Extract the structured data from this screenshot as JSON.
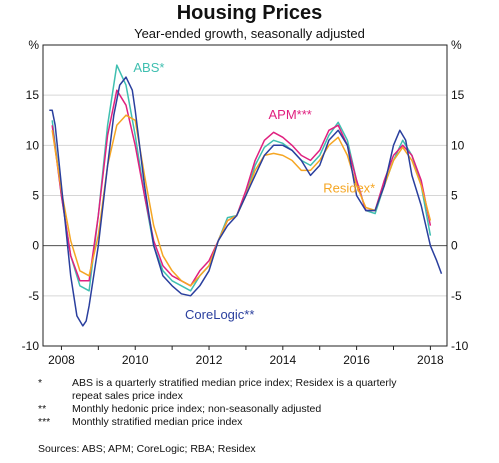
{
  "chart_data": {
    "type": "line",
    "title": "Housing Prices",
    "subtitle": "Year-ended growth, seasonally adjusted",
    "y_unit_left": "%",
    "y_unit_right": "%",
    "xlim": [
      2007.5,
      2018.45
    ],
    "ylim": [
      -10,
      20
    ],
    "x_ticks": [
      2008,
      2010,
      2012,
      2014,
      2016,
      2018
    ],
    "y_ticks": [
      -10,
      -5,
      0,
      5,
      10,
      15
    ],
    "grid": true,
    "series": [
      {
        "name": "ABS*",
        "color": "#3fbfb0",
        "x": [
          2007.75,
          2008.0,
          2008.25,
          2008.5,
          2008.75,
          2009.0,
          2009.25,
          2009.5,
          2009.75,
          2010.0,
          2010.25,
          2010.5,
          2010.75,
          2011.0,
          2011.25,
          2011.5,
          2011.75,
          2012.0,
          2012.25,
          2012.5,
          2012.75,
          2013.0,
          2013.25,
          2013.5,
          2013.75,
          2014.0,
          2014.25,
          2014.5,
          2014.75,
          2015.0,
          2015.25,
          2015.5,
          2015.75,
          2016.0,
          2016.25,
          2016.5,
          2016.75,
          2017.0,
          2017.25,
          2017.5,
          2017.75,
          2018.0
        ],
        "y": [
          12.5,
          5.0,
          -1.0,
          -4.0,
          -4.5,
          3.0,
          12.0,
          18.0,
          16.0,
          11.0,
          5.0,
          0.0,
          -2.5,
          -3.5,
          -4.0,
          -4.5,
          -3.0,
          -2.0,
          0.5,
          2.8,
          3.0,
          5.0,
          8.0,
          9.8,
          10.5,
          10.2,
          9.5,
          8.5,
          8.0,
          9.0,
          11.0,
          12.3,
          10.5,
          6.5,
          3.5,
          3.2,
          6.0,
          8.5,
          10.5,
          9.0,
          6.0,
          1.0
        ]
      },
      {
        "name": "APM***",
        "color": "#e0207f",
        "x": [
          2007.75,
          2008.0,
          2008.25,
          2008.5,
          2008.75,
          2009.0,
          2009.25,
          2009.5,
          2009.75,
          2010.0,
          2010.25,
          2010.5,
          2010.75,
          2011.0,
          2011.25,
          2011.5,
          2011.75,
          2012.0,
          2012.25,
          2012.5,
          2012.75,
          2013.0,
          2013.25,
          2013.5,
          2013.75,
          2014.0,
          2014.25,
          2014.5,
          2014.75,
          2015.0,
          2015.25,
          2015.5,
          2015.75,
          2016.0,
          2016.25,
          2016.5,
          2016.75,
          2017.0,
          2017.25,
          2017.5,
          2017.75,
          2018.0
        ],
        "y": [
          12.0,
          5.0,
          -1.0,
          -3.5,
          -3.5,
          3.0,
          11.0,
          15.5,
          14.0,
          10.0,
          5.0,
          0.5,
          -2.0,
          -3.0,
          -3.5,
          -4.0,
          -2.5,
          -1.5,
          0.5,
          2.5,
          3.0,
          5.5,
          8.5,
          10.5,
          11.3,
          10.8,
          10.0,
          9.0,
          8.5,
          9.5,
          11.5,
          12.0,
          10.0,
          6.5,
          3.5,
          3.5,
          6.5,
          9.0,
          10.0,
          9.0,
          6.5,
          2.0
        ]
      },
      {
        "name": "Residex*",
        "color": "#f5a623",
        "x": [
          2007.75,
          2008.0,
          2008.25,
          2008.5,
          2008.75,
          2009.0,
          2009.25,
          2009.5,
          2009.75,
          2010.0,
          2010.25,
          2010.5,
          2010.75,
          2011.0,
          2011.25,
          2011.5,
          2011.75,
          2012.0,
          2012.25,
          2012.5,
          2012.75,
          2013.0,
          2013.25,
          2013.5,
          2013.75,
          2014.0,
          2014.25,
          2014.5,
          2014.75,
          2015.0,
          2015.25,
          2015.5,
          2015.75,
          2016.0,
          2016.25,
          2016.5,
          2016.75,
          2017.0,
          2017.25,
          2017.5,
          2017.75,
          2018.0
        ],
        "y": [
          11.5,
          5.5,
          0.5,
          -2.5,
          -3.0,
          1.0,
          8.0,
          12.0,
          13.0,
          12.5,
          7.0,
          2.0,
          -1.0,
          -2.5,
          -3.5,
          -4.0,
          -3.0,
          -2.0,
          0.5,
          2.5,
          3.0,
          5.0,
          7.5,
          9.0,
          9.2,
          9.0,
          8.5,
          7.5,
          7.5,
          8.5,
          10.0,
          10.8,
          9.0,
          6.0,
          3.8,
          3.5,
          6.0,
          8.5,
          9.8,
          8.5,
          6.0,
          2.5
        ]
      },
      {
        "name": "CoreLogic**",
        "color": "#2a3f9e",
        "x": [
          2007.67,
          2007.75,
          2007.83,
          2008.0,
          2008.25,
          2008.42,
          2008.58,
          2008.67,
          2008.75,
          2009.0,
          2009.25,
          2009.42,
          2009.58,
          2009.75,
          2009.92,
          2010.0,
          2010.25,
          2010.5,
          2010.75,
          2011.0,
          2011.25,
          2011.5,
          2011.75,
          2012.0,
          2012.25,
          2012.5,
          2012.75,
          2013.0,
          2013.25,
          2013.5,
          2013.75,
          2014.0,
          2014.25,
          2014.5,
          2014.75,
          2015.0,
          2015.25,
          2015.5,
          2015.75,
          2016.0,
          2016.25,
          2016.5,
          2016.75,
          2017.0,
          2017.17,
          2017.33,
          2017.5,
          2017.75,
          2018.0,
          2018.17,
          2018.3
        ],
        "y": [
          13.5,
          13.5,
          12.0,
          6.0,
          -3.0,
          -7.0,
          -8.0,
          -7.5,
          -6.0,
          0.0,
          8.0,
          13.0,
          16.0,
          16.8,
          15.5,
          13.5,
          6.0,
          0.0,
          -3.0,
          -4.0,
          -4.8,
          -5.0,
          -4.0,
          -2.5,
          0.5,
          2.0,
          3.0,
          5.0,
          7.0,
          9.0,
          10.0,
          10.0,
          9.5,
          8.5,
          7.0,
          8.0,
          10.5,
          11.5,
          10.0,
          5.0,
          3.5,
          3.5,
          6.0,
          10.0,
          11.5,
          10.5,
          7.0,
          4.0,
          0.0,
          -1.5,
          -2.8
        ]
      }
    ],
    "labels": {
      "abs": "ABS*",
      "apm": "APM***",
      "residex": "Residex*",
      "corelogic": "CoreLogic**"
    }
  },
  "notes": [
    {
      "mark": "*",
      "lines": [
        "ABS is a quarterly stratified median price index; Residex is a quarterly",
        "repeat sales price index"
      ]
    },
    {
      "mark": "**",
      "lines": [
        "Monthly hedonic price index; non-seasonally adjusted"
      ]
    },
    {
      "mark": "***",
      "lines": [
        "Monthly stratified median price index"
      ]
    }
  ],
  "sources": "Sources: ABS; APM; CoreLogic; RBA; Residex"
}
